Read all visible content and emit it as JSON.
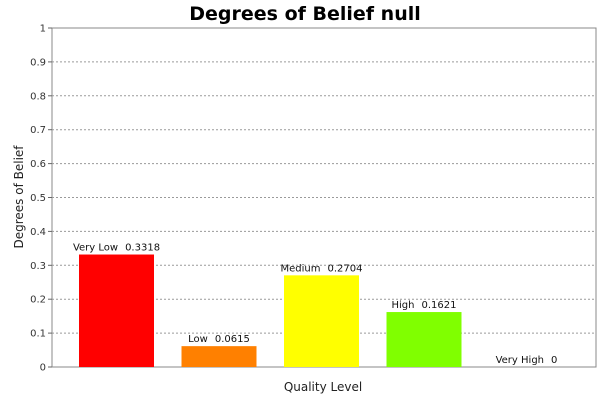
{
  "chart_data": {
    "type": "bar",
    "title": "Degrees of Belief null",
    "xlabel": "Quality Level",
    "ylabel": "Degrees of Belief",
    "ylim": [
      0,
      1
    ],
    "yticks": [
      "0",
      "0.1",
      "0.2",
      "0.3",
      "0.4",
      "0.5",
      "0.6",
      "0.7",
      "0.8",
      "0.9",
      "1"
    ],
    "grid": true,
    "legend": "none",
    "categories": [
      "Very Low",
      "Low",
      "Medium",
      "High",
      "Very High"
    ],
    "values": [
      0.3318,
      0.0615,
      0.2704,
      0.1621,
      0
    ],
    "value_labels": [
      "0.3318",
      "0.0615",
      "0.2704",
      "0.1621",
      "0"
    ],
    "colors": [
      "#ff0000",
      "#ff8000",
      "#ffff00",
      "#80ff00",
      "#00c000"
    ]
  }
}
